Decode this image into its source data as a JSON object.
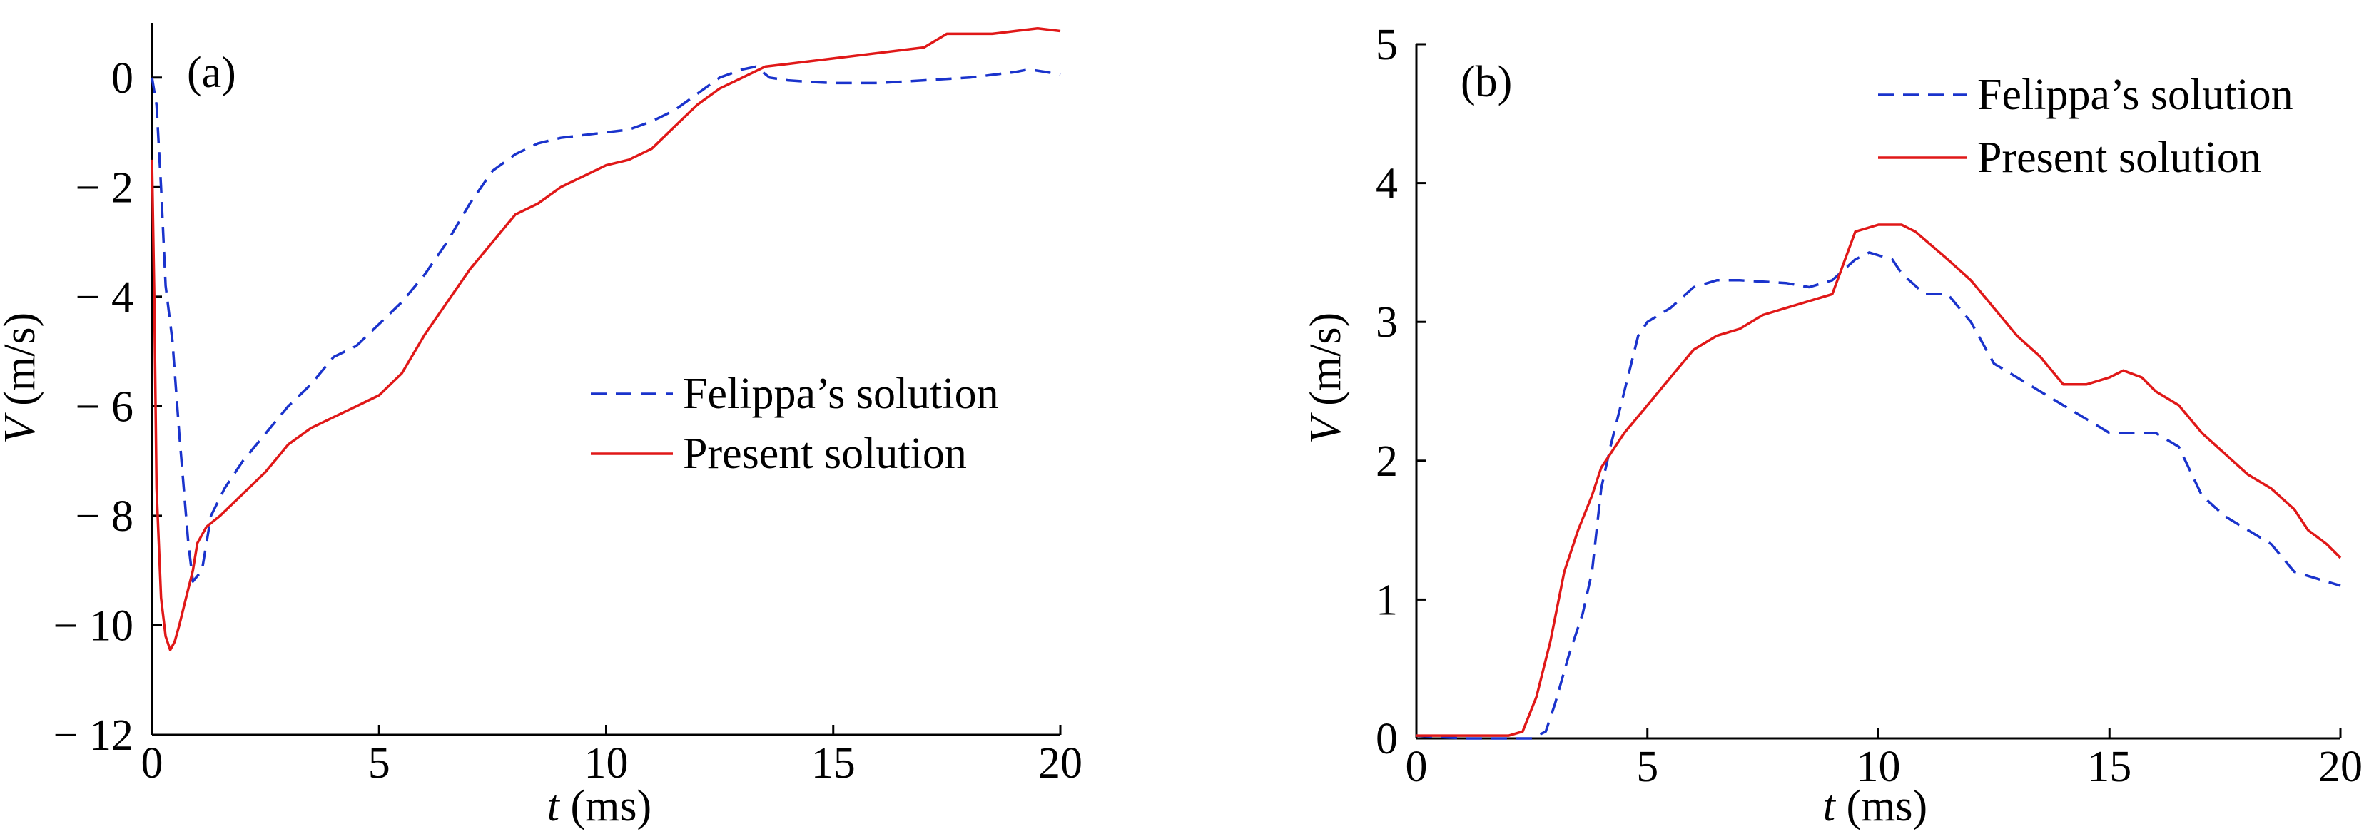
{
  "chart_data": [
    {
      "panel": "(a)",
      "type": "line",
      "xlabel_var": "t",
      "xlabel_unit": " (ms)",
      "ylabel_var": "V",
      "ylabel_unit": " (m/s)",
      "xlim": [
        0,
        20
      ],
      "ylim": [
        -12,
        1
      ],
      "xticks": [
        0,
        5,
        10,
        15,
        20
      ],
      "xtick_labels": [
        "0",
        "5",
        "10",
        "15",
        "20"
      ],
      "yticks": [
        0,
        -2,
        -4,
        -6,
        -8,
        -10,
        -12
      ],
      "ytick_labels": [
        "0",
        "− 2",
        "− 4",
        "− 6",
        "− 8",
        "− 10",
        "− 12"
      ],
      "grid": false,
      "legend_position": "center-right",
      "series": [
        {
          "name": "Felippa’s solution",
          "style": "dashed",
          "color": "#1a33cc",
          "x": [
            0,
            0.1,
            0.2,
            0.3,
            0.45,
            0.6,
            0.8,
            0.9,
            1.1,
            1.3,
            1.6,
            2.0,
            2.5,
            3.0,
            3.5,
            4.0,
            4.5,
            5.0,
            5.5,
            6.0,
            6.5,
            7.0,
            7.5,
            8.0,
            8.5,
            9.0,
            10.0,
            10.5,
            11.0,
            11.5,
            12.0,
            12.5,
            13.0,
            13.3,
            13.6,
            14.0,
            14.5,
            15.0,
            16.0,
            17.0,
            18.0,
            19.0,
            19.3,
            19.7,
            20.0
          ],
          "y": [
            0,
            -0.5,
            -2.0,
            -3.8,
            -4.8,
            -6.5,
            -8.5,
            -9.2,
            -9.0,
            -8.0,
            -7.5,
            -7.0,
            -6.5,
            -6.0,
            -5.6,
            -5.1,
            -4.9,
            -4.5,
            -4.1,
            -3.6,
            -3.0,
            -2.3,
            -1.7,
            -1.4,
            -1.2,
            -1.1,
            -1.0,
            -0.95,
            -0.8,
            -0.6,
            -0.3,
            0.0,
            0.15,
            0.2,
            0.0,
            -0.05,
            -0.08,
            -0.1,
            -0.1,
            -0.05,
            0.0,
            0.1,
            0.15,
            0.1,
            0.05
          ]
        },
        {
          "name": "Present solution",
          "style": "solid",
          "color": "#e01818",
          "x": [
            0,
            0.05,
            0.1,
            0.2,
            0.3,
            0.4,
            0.5,
            0.6,
            0.75,
            0.9,
            1.0,
            1.2,
            1.5,
            2.0,
            2.5,
            3.0,
            3.5,
            4.0,
            4.5,
            5.0,
            5.5,
            6.0,
            6.5,
            7.0,
            7.5,
            8.0,
            8.5,
            9.0,
            10.0,
            10.5,
            11.0,
            11.5,
            12.0,
            12.5,
            13.0,
            13.5,
            14.0,
            15.0,
            16.0,
            17.0,
            17.5,
            18.0,
            18.5,
            19.0,
            19.5,
            20.0
          ],
          "y": [
            -1.5,
            -4.0,
            -7.5,
            -9.5,
            -10.2,
            -10.45,
            -10.3,
            -10.0,
            -9.5,
            -9.0,
            -8.5,
            -8.2,
            -8.0,
            -7.6,
            -7.2,
            -6.7,
            -6.4,
            -6.2,
            -6.0,
            -5.8,
            -5.4,
            -4.7,
            -4.1,
            -3.5,
            -3.0,
            -2.5,
            -2.3,
            -2.0,
            -1.6,
            -1.5,
            -1.3,
            -0.9,
            -0.5,
            -0.2,
            0.0,
            0.2,
            0.25,
            0.35,
            0.45,
            0.55,
            0.8,
            0.8,
            0.8,
            0.85,
            0.9,
            0.85
          ]
        }
      ]
    },
    {
      "panel": "(b)",
      "type": "line",
      "xlabel_var": "t",
      "xlabel_unit": " (ms)",
      "ylabel_var": "V",
      "ylabel_unit": " (m/s)",
      "xlim": [
        0,
        20
      ],
      "ylim": [
        0,
        5
      ],
      "xticks": [
        0,
        5,
        10,
        15,
        20
      ],
      "xtick_labels": [
        "0",
        "5",
        "10",
        "15",
        "20"
      ],
      "yticks": [
        0,
        1,
        2,
        3,
        4,
        5
      ],
      "ytick_labels": [
        "0",
        "1",
        "2",
        "3",
        "4",
        "5"
      ],
      "grid": false,
      "legend_position": "top-right",
      "series": [
        {
          "name": "Felippa’s solution",
          "style": "dashed",
          "color": "#1a33cc",
          "x": [
            0,
            1,
            2,
            2.5,
            2.8,
            3.0,
            3.3,
            3.6,
            3.8,
            4.0,
            4.2,
            4.5,
            4.8,
            5.0,
            5.5,
            6.0,
            6.5,
            7.0,
            8.0,
            8.5,
            9.0,
            9.5,
            9.8,
            10.3,
            10.5,
            11.0,
            11.5,
            12.0,
            12.5,
            13.0,
            13.5,
            14.0,
            14.5,
            15.0,
            15.5,
            16.0,
            16.5,
            17.0,
            17.5,
            18.0,
            18.5,
            19.0,
            19.5,
            20.0
          ],
          "y": [
            0.02,
            0.0,
            0.0,
            0.0,
            0.05,
            0.25,
            0.6,
            0.9,
            1.2,
            1.8,
            2.1,
            2.5,
            2.9,
            3.0,
            3.1,
            3.25,
            3.3,
            3.3,
            3.28,
            3.25,
            3.3,
            3.45,
            3.5,
            3.45,
            3.35,
            3.2,
            3.2,
            3.0,
            2.7,
            2.6,
            2.5,
            2.4,
            2.3,
            2.2,
            2.2,
            2.2,
            2.1,
            1.75,
            1.6,
            1.5,
            1.4,
            1.2,
            1.15,
            1.1
          ]
        },
        {
          "name": "Present solution",
          "style": "solid",
          "color": "#e01818",
          "x": [
            0,
            1,
            2,
            2.3,
            2.6,
            2.9,
            3.2,
            3.5,
            3.8,
            4.0,
            4.2,
            4.5,
            5.0,
            5.5,
            6.0,
            6.5,
            7.0,
            7.5,
            8.0,
            8.5,
            9.0,
            9.5,
            10.0,
            10.5,
            10.8,
            11.5,
            12.0,
            12.5,
            13.0,
            13.5,
            14.0,
            14.5,
            15.0,
            15.3,
            15.7,
            16.0,
            16.5,
            17.0,
            17.5,
            18.0,
            18.5,
            19.0,
            19.3,
            19.7,
            20.0
          ],
          "y": [
            0.02,
            0.02,
            0.02,
            0.05,
            0.3,
            0.7,
            1.2,
            1.5,
            1.75,
            1.95,
            2.05,
            2.2,
            2.4,
            2.6,
            2.8,
            2.9,
            2.95,
            3.05,
            3.1,
            3.15,
            3.2,
            3.65,
            3.7,
            3.7,
            3.65,
            3.45,
            3.3,
            3.1,
            2.9,
            2.75,
            2.55,
            2.55,
            2.6,
            2.65,
            2.6,
            2.5,
            2.4,
            2.2,
            2.05,
            1.9,
            1.8,
            1.65,
            1.5,
            1.4,
            1.3
          ]
        }
      ]
    }
  ]
}
